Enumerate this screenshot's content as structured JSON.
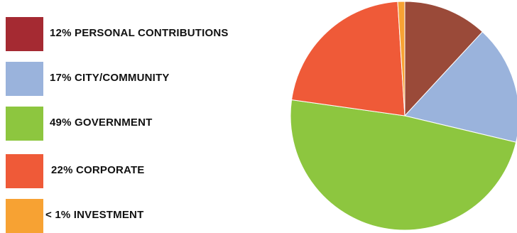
{
  "chart_data": {
    "type": "pie",
    "title": "",
    "legend_position": "left",
    "slices": [
      {
        "label": "12% PERSONAL CONTRIBUTIONS",
        "value": 12,
        "color": "#9a4a39",
        "legend_color": "#a52a32"
      },
      {
        "label": "17% CITY/COMMUNITY",
        "value": 17,
        "color": "#9ab3dc",
        "legend_color": "#9ab3dc"
      },
      {
        "label": "49% GOVERNMENT",
        "value": 49,
        "color": "#8dc63f",
        "legend_color": "#8dc63f"
      },
      {
        "label": "22% CORPORATE",
        "value": 22,
        "color": "#ef5a38",
        "legend_color": "#ef5a38"
      },
      {
        "label": "< 1% INVESTMENT",
        "value": 1,
        "color": "#f7a233",
        "legend_color": "#f7a233"
      }
    ]
  }
}
